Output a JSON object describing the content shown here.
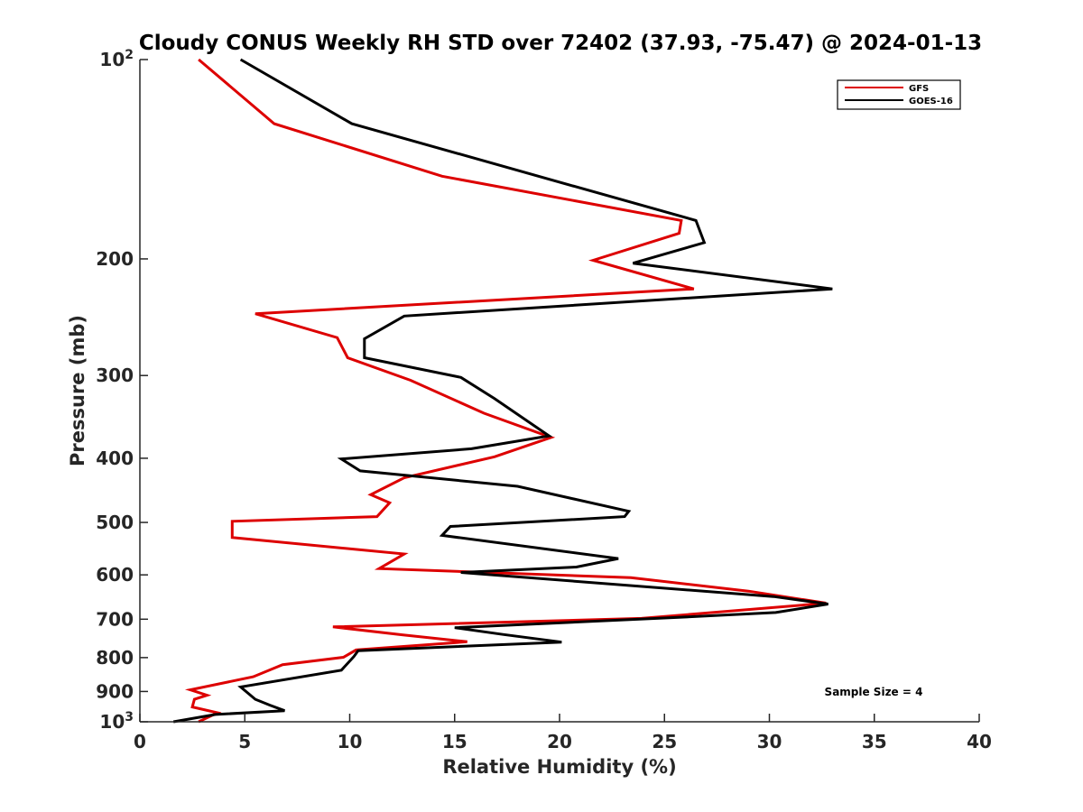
{
  "chart_data": {
    "type": "line",
    "title": "Cloudy CONUS Weekly RH STD over 72402 (37.93, -75.47) @ 2024-01-13",
    "xlabel": "Relative Humidity (%)",
    "ylabel": "Pressure (mb)",
    "xlim": [
      0,
      40
    ],
    "ylim": [
      100,
      1000
    ],
    "y_scale": "log",
    "y_reversed": true,
    "x_ticks": [
      0,
      5,
      10,
      15,
      20,
      25,
      30,
      35,
      40
    ],
    "x_tick_labels": [
      "0",
      "5",
      "10",
      "15",
      "20",
      "25",
      "30",
      "35",
      "40"
    ],
    "y_ticks": [
      100,
      200,
      300,
      400,
      500,
      600,
      700,
      800,
      900,
      1000
    ],
    "y_tick_labels": [
      {
        "base": "10",
        "exp": "2"
      },
      {
        "base": "200",
        "exp": ""
      },
      {
        "base": "300",
        "exp": ""
      },
      {
        "base": "400",
        "exp": ""
      },
      {
        "base": "500",
        "exp": ""
      },
      {
        "base": "600",
        "exp": ""
      },
      {
        "base": "700",
        "exp": ""
      },
      {
        "base": "800",
        "exp": ""
      },
      {
        "base": "900",
        "exp": ""
      },
      {
        "base": "10",
        "exp": "3"
      }
    ],
    "grid": false,
    "legend_position": "top-right",
    "annotation": "Sample Size = 4",
    "series": [
      {
        "name": "GFS",
        "color": "#dd0000",
        "points": [
          [
            2.8,
            100
          ],
          [
            6.4,
            125
          ],
          [
            14.4,
            150
          ],
          [
            25.8,
            175
          ],
          [
            25.7,
            183
          ],
          [
            21.6,
            201
          ],
          [
            26.4,
            222
          ],
          [
            5.5,
            242
          ],
          [
            9.4,
            263
          ],
          [
            9.9,
            282
          ],
          [
            12.9,
            305
          ],
          [
            16.4,
            342
          ],
          [
            19.6,
            372
          ],
          [
            16.9,
            398
          ],
          [
            12.6,
            428
          ],
          [
            11.0,
            454
          ],
          [
            11.9,
            467
          ],
          [
            11.3,
            490
          ],
          [
            4.4,
            498
          ],
          [
            4.4,
            527
          ],
          [
            12.6,
            558
          ],
          [
            11.4,
            587
          ],
          [
            23.4,
            606
          ],
          [
            29.0,
            635
          ],
          [
            32.7,
            662
          ],
          [
            23.9,
            698
          ],
          [
            9.2,
            719
          ],
          [
            12.5,
            739
          ],
          [
            15.6,
            757
          ],
          [
            10.3,
            779
          ],
          [
            9.7,
            799
          ],
          [
            6.8,
            820
          ],
          [
            5.4,
            855
          ],
          [
            2.4,
            895
          ],
          [
            3.2,
            912
          ],
          [
            2.6,
            925
          ],
          [
            2.5,
            950
          ],
          [
            3.7,
            969
          ],
          [
            2.8,
            1000
          ]
        ]
      },
      {
        "name": "GOES-16",
        "color": "#000000",
        "points": [
          [
            4.8,
            100
          ],
          [
            10.1,
            125
          ],
          [
            26.5,
            175
          ],
          [
            26.9,
            189
          ],
          [
            23.5,
            203
          ],
          [
            33.0,
            222
          ],
          [
            12.6,
            244
          ],
          [
            10.7,
            264
          ],
          [
            10.7,
            282
          ],
          [
            15.3,
            302
          ],
          [
            16.9,
            325
          ],
          [
            19.5,
            370
          ],
          [
            15.8,
            387
          ],
          [
            9.6,
            401
          ],
          [
            10.5,
            418
          ],
          [
            18.0,
            441
          ],
          [
            23.3,
            481
          ],
          [
            23.1,
            490
          ],
          [
            14.8,
            507
          ],
          [
            14.4,
            523
          ],
          [
            22.8,
            567
          ],
          [
            20.8,
            584
          ],
          [
            15.3,
            595
          ],
          [
            30.2,
            647
          ],
          [
            32.8,
            664
          ],
          [
            30.3,
            684
          ],
          [
            25.1,
            697
          ],
          [
            15.0,
            721
          ],
          [
            17.3,
            738
          ],
          [
            20.1,
            758
          ],
          [
            10.4,
            781
          ],
          [
            10.2,
            797
          ],
          [
            9.6,
            836
          ],
          [
            4.8,
            886
          ],
          [
            5.5,
            925
          ],
          [
            6.2,
            944
          ],
          [
            6.9,
            962
          ],
          [
            3.6,
            975
          ],
          [
            1.6,
            1000
          ]
        ]
      }
    ]
  }
}
